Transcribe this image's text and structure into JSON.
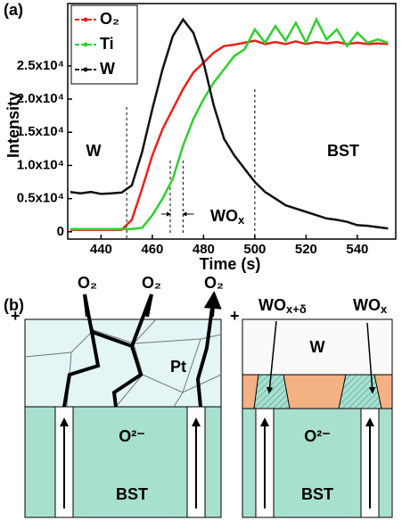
{
  "chart_data": {
    "type": "line",
    "panel_label": "(a)",
    "xlabel": "Time (s)",
    "ylabel": "Intensity",
    "x": [
      428,
      432,
      436,
      440,
      444,
      448,
      452,
      456,
      460,
      464,
      468,
      472,
      476,
      480,
      484,
      488,
      492,
      496,
      500,
      504,
      508,
      512,
      516,
      520,
      524,
      528,
      532,
      536,
      540,
      544,
      548,
      552
    ],
    "series": [
      {
        "name": "O₂",
        "color": "#e8231a",
        "values": [
          300,
          300,
          300,
          300,
          300,
          300,
          1800,
          6500,
          11500,
          15500,
          18500,
          21500,
          24000,
          25500,
          27000,
          28000,
          28200,
          28500,
          28800,
          28300,
          28600,
          28300,
          28700,
          28300,
          28600,
          28400,
          28600,
          28300,
          28500,
          28300,
          28400,
          28300
        ]
      },
      {
        "name": "Ti",
        "color": "#2fd02f",
        "values": [
          400,
          400,
          400,
          400,
          400,
          400,
          400,
          600,
          2500,
          5000,
          8000,
          13000,
          17000,
          20000,
          22500,
          24500,
          26500,
          27500,
          30500,
          28500,
          31000,
          28800,
          31500,
          28500,
          32000,
          29000,
          30500,
          28000,
          30000,
          28500,
          29000,
          28500
        ]
      },
      {
        "name": "W",
        "color": "#111111",
        "values": [
          6000,
          5800,
          6000,
          5700,
          5800,
          5900,
          7000,
          12000,
          18500,
          24500,
          29500,
          32000,
          30000,
          25500,
          19000,
          14000,
          11500,
          9500,
          7500,
          6000,
          5000,
          4000,
          3500,
          3000,
          2500,
          2000,
          1800,
          1500,
          1000,
          900,
          700,
          500
        ]
      }
    ],
    "xlim": [
      427,
      555
    ],
    "xticks": [
      440,
      460,
      480,
      500,
      520,
      540
    ],
    "ylim": [
      -1100,
      34400
    ],
    "yticks": [
      0,
      {
        "value": 5000,
        "label": "0.5x10⁴"
      },
      {
        "value": 10000,
        "label": "1.0x10⁴"
      },
      {
        "value": 15000,
        "label": "1.5x10⁴"
      },
      {
        "value": 20000,
        "label": "2.0x10⁴"
      },
      {
        "value": 25000,
        "label": "2.5x10⁴"
      }
    ],
    "legend": "upper left",
    "dashed_lines": [
      450,
      500
    ],
    "bracket_lines": [
      467,
      472
    ],
    "annotations": {
      "left": "W",
      "right": "BST",
      "bracket": {
        "base": "WO",
        "sub": "x"
      }
    }
  },
  "diagram": {
    "panel_label": "(b)",
    "left": {
      "sign": "+",
      "gas": [
        "O₂",
        "O₂",
        "O₂"
      ],
      "electrode": "Pt",
      "ion": "O²⁻",
      "film": "BST"
    },
    "right": {
      "sign": "+",
      "electrode": "W",
      "oxide_a": {
        "base": "WO",
        "sub": "x+δ"
      },
      "oxide_b": {
        "base": "WO",
        "sub": "x"
      },
      "ion": "O²⁻",
      "film": "BST"
    }
  }
}
